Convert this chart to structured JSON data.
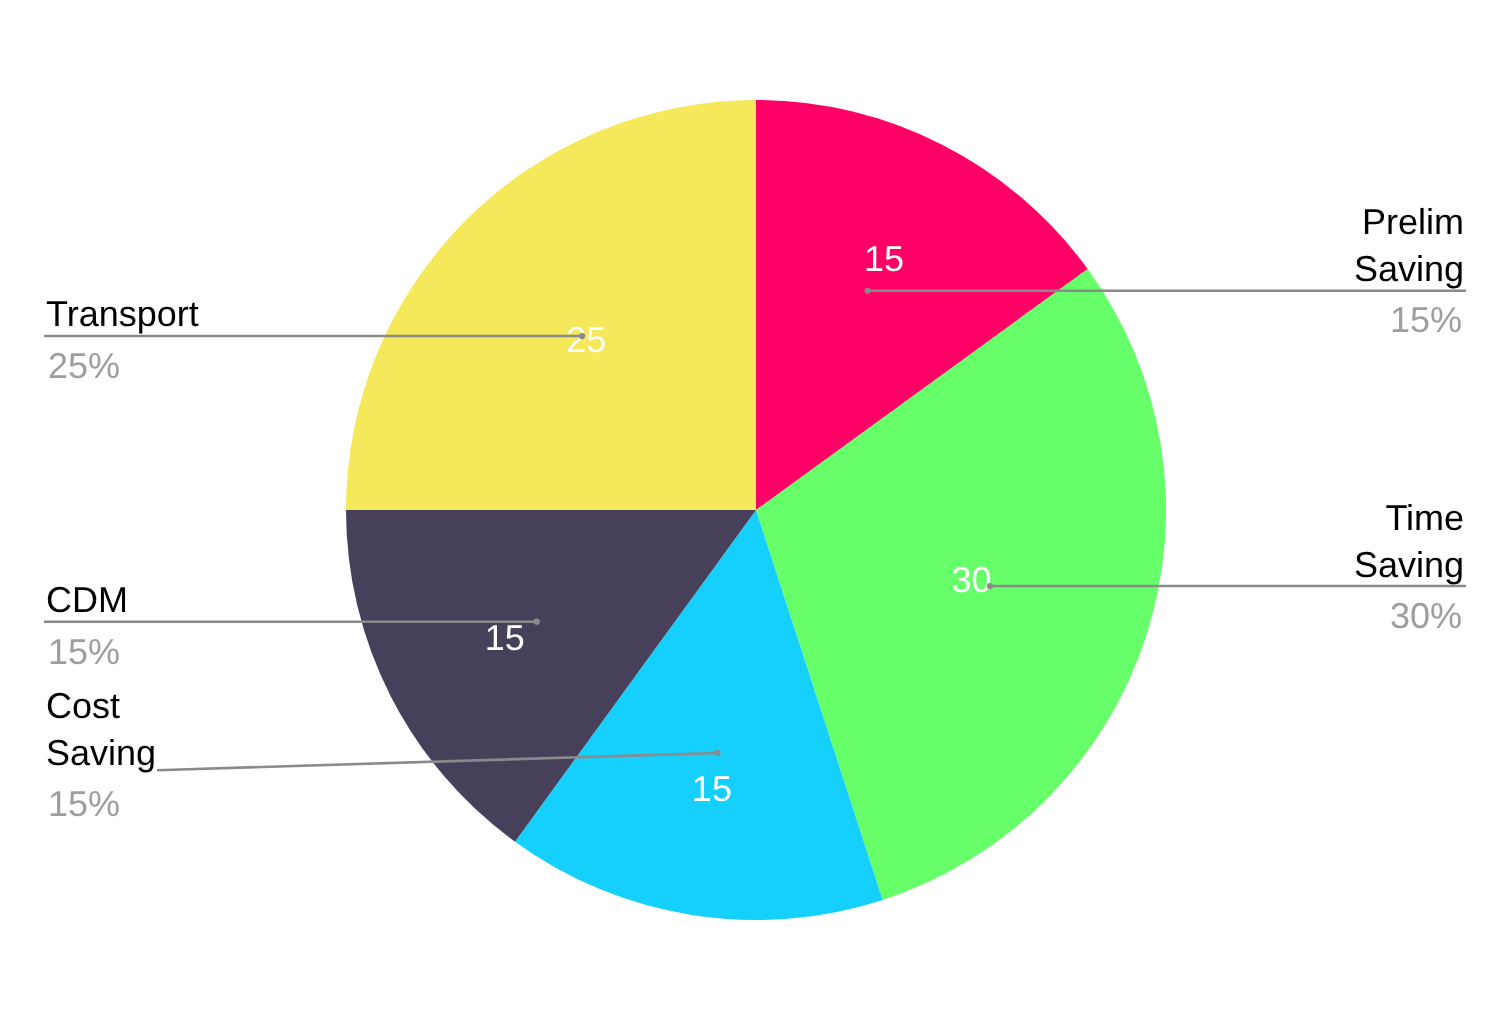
{
  "chart_data": {
    "type": "pie",
    "categories": [
      "Prelim Saving",
      "Time Saving",
      "Cost Saving",
      "CDM",
      "Transport"
    ],
    "values": [
      15,
      30,
      15,
      15,
      25
    ],
    "colors": [
      "#ff0066",
      "#66ff6a",
      "#15cffd",
      "#46405a",
      "#f5e85a"
    ],
    "data_labels": true,
    "annotations": [
      "15%",
      "30%",
      "15%",
      "15%",
      "25%"
    ]
  }
}
